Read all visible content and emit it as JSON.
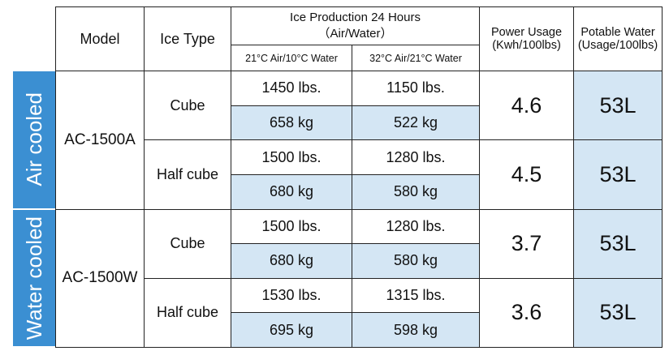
{
  "header": {
    "model": "Model",
    "ice_type": "Ice Type",
    "production": "Ice Production 24 Hours",
    "production_sub": "（Air/Water）",
    "cond1": "21°C Air/10°C Water",
    "cond2": "32°C Air/21°C Water",
    "power": "Power Usage",
    "power_unit": "(Kwh/100lbs)",
    "water": "Potable Water",
    "water_unit": "(Usage/100lbs)"
  },
  "groups": [
    {
      "label": "Air cooled",
      "model": "AC-1500A",
      "rows": [
        {
          "ice_type": "Cube",
          "lbs": [
            "1450 lbs.",
            "1150 lbs."
          ],
          "kg": [
            "658 kg",
            "522 kg"
          ],
          "power": "4.6",
          "water": "53L"
        },
        {
          "ice_type": "Half cube",
          "lbs": [
            "1500 lbs.",
            "1280 lbs."
          ],
          "kg": [
            "680 kg",
            "580 kg"
          ],
          "power": "4.5",
          "water": "53L"
        }
      ]
    },
    {
      "label": "Water cooled",
      "model": "AC-1500W",
      "rows": [
        {
          "ice_type": "Cube",
          "lbs": [
            "1500 lbs.",
            "1280 lbs."
          ],
          "kg": [
            "680 kg",
            "580 kg"
          ],
          "power": "3.7",
          "water": "53L"
        },
        {
          "ice_type": "Half cube",
          "lbs": [
            "1530 lbs.",
            "1315 lbs."
          ],
          "kg": [
            "695 kg",
            "598 kg"
          ],
          "power": "3.6",
          "water": "53L"
        }
      ]
    }
  ]
}
